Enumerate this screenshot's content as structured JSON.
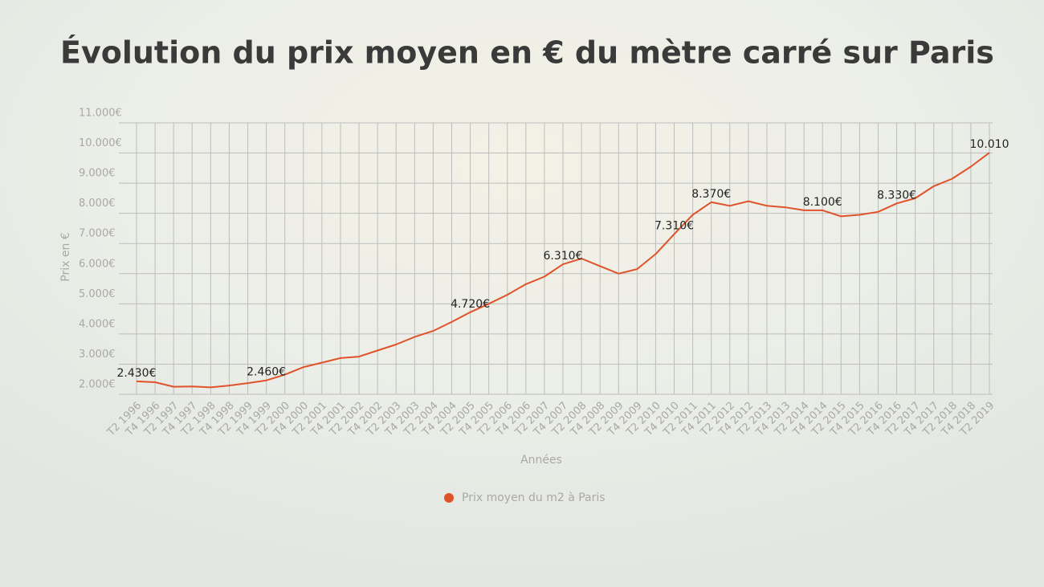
{
  "chart_data": {
    "type": "line",
    "title": "Évolution du prix moyen en € du mètre carré sur Paris",
    "x_label": "Années",
    "y_label": "Prix en €",
    "categories": [
      "T2 1996",
      "T4 1996",
      "T2 1997",
      "T4 1997",
      "T2 1998",
      "T4 1998",
      "T2 1999",
      "T4 1999",
      "T2 2000",
      "T4 2000",
      "T2 2001",
      "T4 2001",
      "T2 2002",
      "T4 2002",
      "T2 2003",
      "T4 2003",
      "T2 2004",
      "T4 2004",
      "T2 2005",
      "T4 2005",
      "T2 2006",
      "T4 2006",
      "T2 2007",
      "T4 2007",
      "T2 2008",
      "T4 2008",
      "T2 2009",
      "T4 2009",
      "T2 2010",
      "T4 2010",
      "T2 2011",
      "T4 2011",
      "T2 2012",
      "T4 2012",
      "T2 2013",
      "T4 2013",
      "T2 2014",
      "T4 2014",
      "T2 2015",
      "T4 2015",
      "T2 2016",
      "T4 2016",
      "T2 2017",
      "T4 2017",
      "T2 2018",
      "T4 2018",
      "T2 2019"
    ],
    "series": [
      {
        "name": "Prix moyen du m2 à Paris",
        "color": "#e0532a",
        "values": [
          2430,
          2400,
          2250,
          2260,
          2230,
          2290,
          2370,
          2460,
          2650,
          2900,
          3050,
          3200,
          3250,
          3450,
          3650,
          3900,
          4100,
          4400,
          4720,
          5000,
          5300,
          5650,
          5900,
          6310,
          6500,
          6250,
          6000,
          6150,
          6650,
          7310,
          7950,
          8370,
          8250,
          8400,
          8250,
          8200,
          8100,
          8100,
          7900,
          7950,
          8050,
          8330,
          8500,
          8900,
          9150,
          9550,
          10010
        ],
        "value_labels": [
          "2.430€",
          null,
          null,
          null,
          null,
          null,
          null,
          "2.460€",
          null,
          null,
          null,
          null,
          null,
          null,
          null,
          null,
          null,
          null,
          "4.720€",
          null,
          null,
          null,
          null,
          "6.310€",
          null,
          null,
          null,
          null,
          null,
          "7.310€",
          null,
          "8.370€",
          null,
          null,
          null,
          null,
          null,
          "8.100€",
          null,
          null,
          null,
          "8.330€",
          null,
          null,
          null,
          null,
          "10.010"
        ]
      }
    ],
    "ylim": [
      2000,
      11000
    ],
    "yticks": [
      {
        "value": 2000,
        "label": "2.000€"
      },
      {
        "value": 3000,
        "label": "3.000€"
      },
      {
        "value": 4000,
        "label": "4.000€"
      },
      {
        "value": 5000,
        "label": "5.000€"
      },
      {
        "value": 6000,
        "label": "6.000€"
      },
      {
        "value": 7000,
        "label": "7.000€"
      },
      {
        "value": 8000,
        "label": "8.000€"
      },
      {
        "value": 9000,
        "label": "9.000€"
      },
      {
        "value": 10000,
        "label": "10.000€"
      },
      {
        "value": 11000,
        "label": "11.000€"
      }
    ],
    "grid": true
  }
}
